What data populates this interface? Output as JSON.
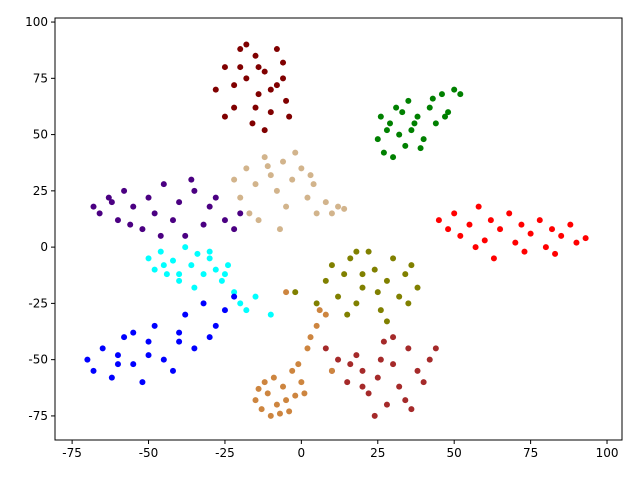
{
  "chart_data": {
    "type": "scatter",
    "xlim": [
      -80.6,
      104.9
    ],
    "ylim": [
      -85.7,
      101.8
    ],
    "xticks": [
      -75,
      -50,
      -25,
      0,
      25,
      50,
      75,
      100
    ],
    "yticks": [
      -75,
      -50,
      -25,
      0,
      25,
      50,
      75,
      100
    ],
    "series": [
      {
        "color": "#800000",
        "x": [
          -28,
          -25,
          -22,
          -20,
          -18,
          -16,
          -15,
          -14,
          -12,
          -10,
          -8,
          -6,
          -5,
          -4,
          -18,
          -22,
          -12,
          -8,
          -25,
          -15,
          -20,
          -10,
          -6,
          -14
        ],
        "y": [
          70,
          80,
          62,
          88,
          75,
          55,
          85,
          68,
          78,
          60,
          72,
          82,
          65,
          58,
          90,
          72,
          52,
          88,
          58,
          62,
          80,
          70,
          75,
          80
        ]
      },
      {
        "color": "#008000",
        "x": [
          25,
          27,
          29,
          30,
          32,
          33,
          34,
          35,
          36,
          38,
          40,
          42,
          44,
          46,
          48,
          50,
          52,
          28,
          31,
          39,
          43,
          47,
          37,
          26
        ],
        "y": [
          48,
          42,
          55,
          40,
          50,
          60,
          45,
          65,
          52,
          58,
          48,
          62,
          55,
          68,
          60,
          70,
          68,
          52,
          62,
          44,
          66,
          58,
          55,
          58
        ]
      },
      {
        "color": "#ff0000",
        "x": [
          45,
          48,
          50,
          52,
          55,
          58,
          60,
          62,
          65,
          68,
          70,
          72,
          75,
          78,
          80,
          82,
          85,
          88,
          90,
          93,
          63,
          73,
          57,
          83
        ],
        "y": [
          12,
          8,
          15,
          5,
          10,
          18,
          3,
          12,
          8,
          15,
          2,
          10,
          6,
          12,
          0,
          8,
          5,
          10,
          2,
          4,
          -5,
          -2,
          0,
          -3
        ]
      },
      {
        "color": "#d2b48c",
        "x": [
          -22,
          -20,
          -18,
          -15,
          -12,
          -10,
          -8,
          -6,
          -5,
          -3,
          0,
          2,
          4,
          5,
          8,
          10,
          12,
          14,
          -14,
          -7,
          -2,
          -17,
          -11,
          3
        ],
        "y": [
          30,
          22,
          35,
          28,
          40,
          32,
          25,
          38,
          18,
          30,
          35,
          22,
          28,
          15,
          20,
          15,
          18,
          17,
          12,
          8,
          42,
          15,
          36,
          32
        ]
      },
      {
        "color": "#4b0082",
        "x": [
          -68,
          -66,
          -63,
          -60,
          -58,
          -55,
          -52,
          -50,
          -48,
          -45,
          -42,
          -40,
          -38,
          -35,
          -32,
          -30,
          -28,
          -25,
          -22,
          -20,
          -56,
          -46,
          -36,
          -62
        ],
        "y": [
          18,
          15,
          22,
          12,
          25,
          18,
          8,
          22,
          15,
          28,
          12,
          20,
          5,
          25,
          10,
          18,
          22,
          12,
          8,
          15,
          10,
          5,
          30,
          20
        ]
      },
      {
        "color": "#00ffff",
        "x": [
          -50,
          -48,
          -46,
          -44,
          -42,
          -40,
          -38,
          -36,
          -34,
          -32,
          -30,
          -28,
          -26,
          -24,
          -22,
          -20,
          -45,
          -35,
          -25,
          -18,
          -15,
          -10,
          -40,
          -30
        ],
        "y": [
          -5,
          -10,
          -2,
          -12,
          -6,
          -15,
          0,
          -8,
          -3,
          -12,
          -5,
          -10,
          -15,
          -8,
          -20,
          -25,
          -8,
          -18,
          -12,
          -28,
          -22,
          -30,
          -12,
          -2
        ]
      },
      {
        "color": "#808000",
        "x": [
          8,
          10,
          12,
          14,
          16,
          18,
          20,
          22,
          24,
          26,
          28,
          30,
          32,
          34,
          36,
          38,
          15,
          25,
          35,
          20,
          -2,
          5,
          28,
          18
        ],
        "y": [
          -15,
          -8,
          -22,
          -12,
          -5,
          -25,
          -18,
          -2,
          -10,
          -28,
          -15,
          -5,
          -22,
          -12,
          -8,
          -18,
          -30,
          -20,
          -25,
          -12,
          -20,
          -25,
          -33,
          -2
        ]
      },
      {
        "color": "#0000ff",
        "x": [
          -70,
          -68,
          -65,
          -62,
          -60,
          -58,
          -55,
          -52,
          -50,
          -48,
          -45,
          -42,
          -40,
          -38,
          -35,
          -32,
          -30,
          -28,
          -25,
          -22,
          -60,
          -50,
          -40,
          -55
        ],
        "y": [
          -50,
          -55,
          -45,
          -58,
          -48,
          -40,
          -52,
          -60,
          -42,
          -35,
          -50,
          -55,
          -38,
          -30,
          -45,
          -25,
          -40,
          -35,
          -28,
          -22,
          -52,
          -48,
          -42,
          -38
        ]
      },
      {
        "color": "#a52a2a",
        "x": [
          8,
          10,
          12,
          15,
          18,
          20,
          22,
          25,
          27,
          28,
          30,
          32,
          35,
          38,
          40,
          42,
          44,
          24,
          34,
          16,
          30,
          36,
          26,
          20
        ],
        "y": [
          -45,
          -55,
          -50,
          -60,
          -48,
          -55,
          -65,
          -58,
          -42,
          -70,
          -52,
          -62,
          -45,
          -55,
          -60,
          -50,
          -45,
          -75,
          -68,
          -52,
          -40,
          -72,
          -50,
          -62
        ]
      },
      {
        "color": "#cd853f",
        "x": [
          -15,
          -13,
          -11,
          -10,
          -8,
          -6,
          -5,
          -4,
          -2,
          0,
          1,
          -9,
          -12,
          -7,
          -3,
          -14,
          2,
          5,
          8,
          -1,
          3,
          6,
          10,
          -5
        ],
        "y": [
          -68,
          -72,
          -65,
          -75,
          -70,
          -62,
          -68,
          -73,
          -66,
          -60,
          -65,
          -58,
          -60,
          -74,
          -55,
          -63,
          -45,
          -35,
          -30,
          -52,
          -40,
          -28,
          -55,
          -20
        ]
      }
    ]
  }
}
